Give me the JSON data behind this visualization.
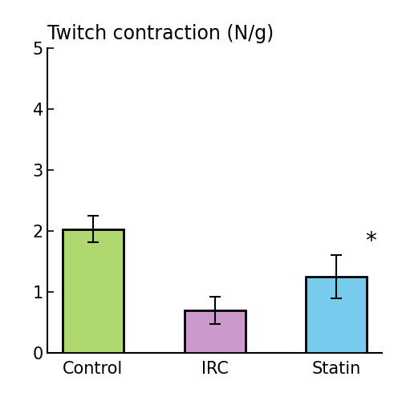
{
  "title": "Twitch contraction (N/g)",
  "categories": [
    "Control",
    "IRC",
    "Statin"
  ],
  "values": [
    2.03,
    0.7,
    1.25
  ],
  "errors": [
    0.22,
    0.22,
    0.35
  ],
  "bar_colors": [
    "#b0d870",
    "#cc99cc",
    "#77ccee"
  ],
  "bar_edge_colors": [
    "#000000",
    "#000000",
    "#000000"
  ],
  "bar_edge_width": 2.0,
  "ylim": [
    0,
    5
  ],
  "yticks": [
    0,
    1,
    2,
    3,
    4,
    5
  ],
  "title_fontsize": 17,
  "tick_fontsize": 15,
  "label_fontsize": 15,
  "bar_width": 0.5,
  "star_text": "*",
  "star_fontsize": 20,
  "star_bar_index": 2,
  "error_capsize": 5,
  "background_color": "#ffffff",
  "figure_width": 4.91,
  "figure_height": 5.0,
  "dpi": 100
}
